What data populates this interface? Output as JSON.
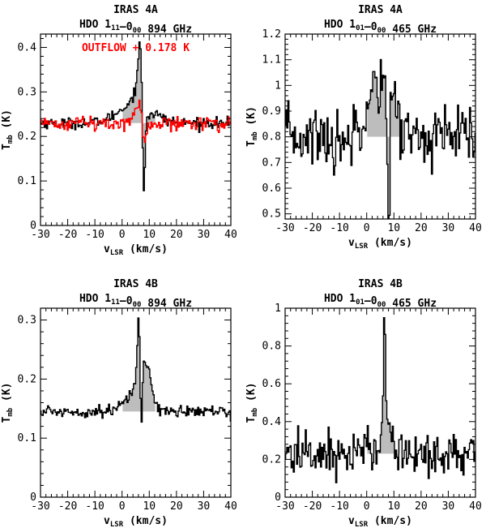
{
  "chart_data": [
    {
      "type": "line",
      "source": "IRAS 4A",
      "title_line1": "IRAS 4A",
      "title_line2": {
        "mol": "HDO ",
        "u1": "1",
        "s1": "11",
        "dash": "–",
        "u2": "0",
        "s2": "00",
        "tail": " 894 GHz"
      },
      "xlabel": {
        "v": "v",
        "sub": "LSR",
        "rest": " (km/s)"
      },
      "ylabel": {
        "t": "T",
        "sub": "mb",
        "rest": " (K)"
      },
      "xlim": [
        -30,
        40
      ],
      "ylim": [
        0,
        0.43
      ],
      "xticks": [
        -30,
        -20,
        -10,
        0,
        10,
        20,
        30,
        40
      ],
      "yticks": [
        0,
        0.1,
        0.2,
        0.3,
        0.4
      ],
      "ytick_labels": [
        "0",
        "0.1",
        "0.2",
        "0.3",
        "0.4"
      ],
      "baseline": 0.23,
      "noise": 0.006,
      "annotation": {
        "text": "OUTFLOW + 0.178 K",
        "color": "#ff0000"
      },
      "series": [
        {
          "name": "HDO 894 GHz",
          "color": "#000000",
          "features": [
            [
              6.5,
              1.8,
              0.05
            ],
            [
              6.6,
              0.6,
              0.09
            ],
            [
              8.0,
              0.45,
              -0.21
            ],
            [
              9.0,
              1.2,
              -0.03
            ],
            [
              5.0,
              6.0,
              0.045
            ]
          ]
        },
        {
          "name": "OUTFLOW + 0.178 K",
          "color": "#ff0000",
          "noise": 0.008,
          "features": [
            [
              6.5,
              2.0,
              0.045
            ],
            [
              8.0,
              0.6,
              -0.06
            ],
            [
              9.5,
              1.5,
              -0.025
            ]
          ]
        }
      ]
    },
    {
      "type": "line",
      "source": "IRAS 4A",
      "title_line1": "IRAS 4A",
      "title_line2": {
        "mol": "HDO ",
        "u1": "1",
        "s1": "01",
        "dash": "–",
        "u2": "0",
        "s2": "00",
        "tail": " 465 GHz"
      },
      "xlabel": {
        "v": "v",
        "sub": "LSR",
        "rest": " (km/s)"
      },
      "ylabel": {
        "t": "T",
        "sub": "mb",
        "rest": " (K)"
      },
      "xlim": [
        -30,
        40
      ],
      "ylim": [
        0.48,
        1.2
      ],
      "xticks": [
        -30,
        -20,
        -10,
        0,
        10,
        20,
        30,
        40
      ],
      "yticks": [
        0.5,
        0.6,
        0.7,
        0.8,
        0.9,
        1.0,
        1.1,
        1.2
      ],
      "ytick_labels": [
        "0.5",
        "0.6",
        "0.7",
        "0.8",
        "0.9",
        "1",
        "1.1",
        "1.2"
      ],
      "baseline": 0.8,
      "noise": 0.06,
      "series": [
        {
          "name": "HDO 465 GHz",
          "color": "#000000",
          "features": [
            [
              6.5,
              3.5,
              0.24
            ],
            [
              8.0,
              0.5,
              -0.55
            ],
            [
              0.0,
              2.5,
              0.1
            ],
            [
              -12.0,
              0.5,
              -0.1
            ]
          ]
        }
      ]
    },
    {
      "type": "line",
      "source": "IRAS 4B",
      "title_line1": "IRAS 4B",
      "title_line2": {
        "mol": "HDO ",
        "u1": "1",
        "s1": "11",
        "dash": "–",
        "u2": "0",
        "s2": "00",
        "tail": " 894 GHz"
      },
      "xlabel": {
        "v": "v",
        "sub": "LSR",
        "rest": " (km/s)"
      },
      "ylabel": {
        "t": "T",
        "sub": "mb",
        "rest": " (K)"
      },
      "xlim": [
        -30,
        40
      ],
      "ylim": [
        0,
        0.32
      ],
      "xticks": [
        -30,
        -20,
        -10,
        0,
        10,
        20,
        30,
        40
      ],
      "yticks": [
        0,
        0.1,
        0.2,
        0.3
      ],
      "ytick_labels": [
        "0",
        "0.1",
        "0.2",
        "0.3"
      ],
      "baseline": 0.145,
      "noise": 0.005,
      "series": [
        {
          "name": "HDO 894 GHz",
          "color": "#000000",
          "features": [
            [
              6.2,
              0.5,
              0.09
            ],
            [
              6.5,
              1.8,
              0.05
            ],
            [
              7.0,
              0.35,
              -0.12
            ],
            [
              9.5,
              1.5,
              0.05
            ],
            [
              5.0,
              5.0,
              0.02
            ]
          ]
        }
      ]
    },
    {
      "type": "line",
      "source": "IRAS 4B",
      "title_line1": "IRAS 4B",
      "title_line2": {
        "mol": "HDO ",
        "u1": "1",
        "s1": "01",
        "dash": "–",
        "u2": "0",
        "s2": "00",
        "tail": " 465 GHz"
      },
      "xlabel": {
        "v": "v",
        "sub": "LSR",
        "rest": " (km/s)"
      },
      "ylabel": {
        "t": "T",
        "sub": "mb",
        "rest": " (K)"
      },
      "xlim": [
        -30,
        40
      ],
      "ylim": [
        0,
        1.0
      ],
      "xticks": [
        -30,
        -20,
        -10,
        0,
        10,
        20,
        30,
        40
      ],
      "yticks": [
        0,
        0.2,
        0.4,
        0.6,
        0.8,
        1.0
      ],
      "ytick_labels": [
        "0",
        "0.2",
        "0.4",
        "0.6",
        "0.8",
        "1"
      ],
      "baseline": 0.23,
      "noise": 0.06,
      "series": [
        {
          "name": "HDO 465 GHz",
          "color": "#000000",
          "features": [
            [
              6.5,
              0.45,
              0.62
            ],
            [
              8.0,
              1.5,
              0.12
            ],
            [
              5.0,
              2.5,
              0.05
            ]
          ]
        }
      ]
    }
  ]
}
